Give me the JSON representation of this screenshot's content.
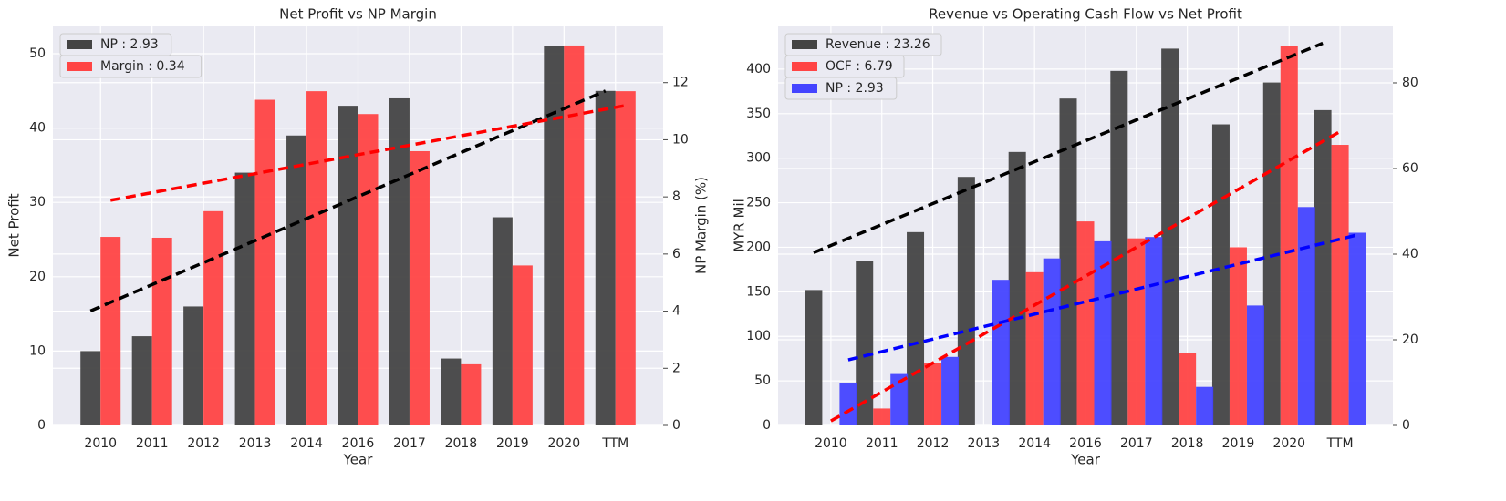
{
  "chart_data": [
    {
      "type": "bar",
      "title": "Net Profit vs NP Margin",
      "xlabel": "Year",
      "ylabel": "Net Profit",
      "y2label": "NP Margin (%)",
      "categories": [
        "2010",
        "2011",
        "2012",
        "2013",
        "2014",
        "2016",
        "2017",
        "2018",
        "2019",
        "2020",
        "TTM"
      ],
      "series": [
        {
          "name": "NP : 2.93",
          "color": "#444444",
          "values": [
            10,
            12,
            16,
            34,
            39,
            43,
            44,
            9,
            28,
            51,
            45
          ],
          "trend": [
            15.4,
            45
          ],
          "trend_color": "#000000"
        },
        {
          "name": "Margin : 0.34",
          "color": "#ff4444",
          "axis": "y2",
          "values": [
            6.6,
            6.57,
            7.5,
            11.4,
            11.7,
            10.9,
            9.6,
            2.14,
            5.6,
            13.3,
            11.7
          ],
          "trend": [
            7.88,
            11.2
          ],
          "trend_color": "#ff0000"
        }
      ],
      "ylim": [
        0,
        53.8
      ],
      "yticks": [
        0,
        10,
        20,
        30,
        40,
        50
      ],
      "y2lim": [
        0,
        14
      ],
      "y2ticks": [
        0,
        2,
        4,
        6,
        8,
        10,
        12
      ],
      "grid": true
    },
    {
      "type": "bar",
      "title": "Revenue vs Operating Cash Flow vs Net Profit",
      "xlabel": "Year",
      "ylabel": "MYR Mil",
      "categories": [
        "2010",
        "2011",
        "2012",
        "2013",
        "2014",
        "2016",
        "2017",
        "2018",
        "2019",
        "2020",
        "TTM"
      ],
      "series": [
        {
          "name": "Revenue : 23.26",
          "color": "#444444",
          "values": [
            152,
            185,
            217,
            279,
            307,
            367,
            398,
            423,
            338,
            385,
            354
          ],
          "trend": [
            194,
            429
          ],
          "trend_color": "#000000"
        },
        {
          "name": "OCF : 6.79",
          "color": "#ff4444",
          "values": [
            0,
            19,
            70,
            0,
            172,
            229,
            210,
            81,
            200,
            426,
            315
          ],
          "trend": [
            5,
            330
          ],
          "trend_color": "#ff0000"
        },
        {
          "name": "NP : 2.93",
          "color": "#4444ff",
          "axis": "y2",
          "values": [
            10,
            12,
            16,
            34,
            39,
            43,
            44,
            9,
            28,
            51,
            45
          ],
          "trend": [
            15.3,
            44.5
          ],
          "trend_color": "#0000ff"
        }
      ],
      "ylim": [
        0,
        449
      ],
      "yticks": [
        0,
        50,
        100,
        150,
        200,
        250,
        300,
        350,
        400
      ],
      "y2lim": [
        0,
        93.4
      ],
      "y2ticks": [
        0,
        20,
        40,
        60,
        80
      ],
      "grid": true
    }
  ]
}
